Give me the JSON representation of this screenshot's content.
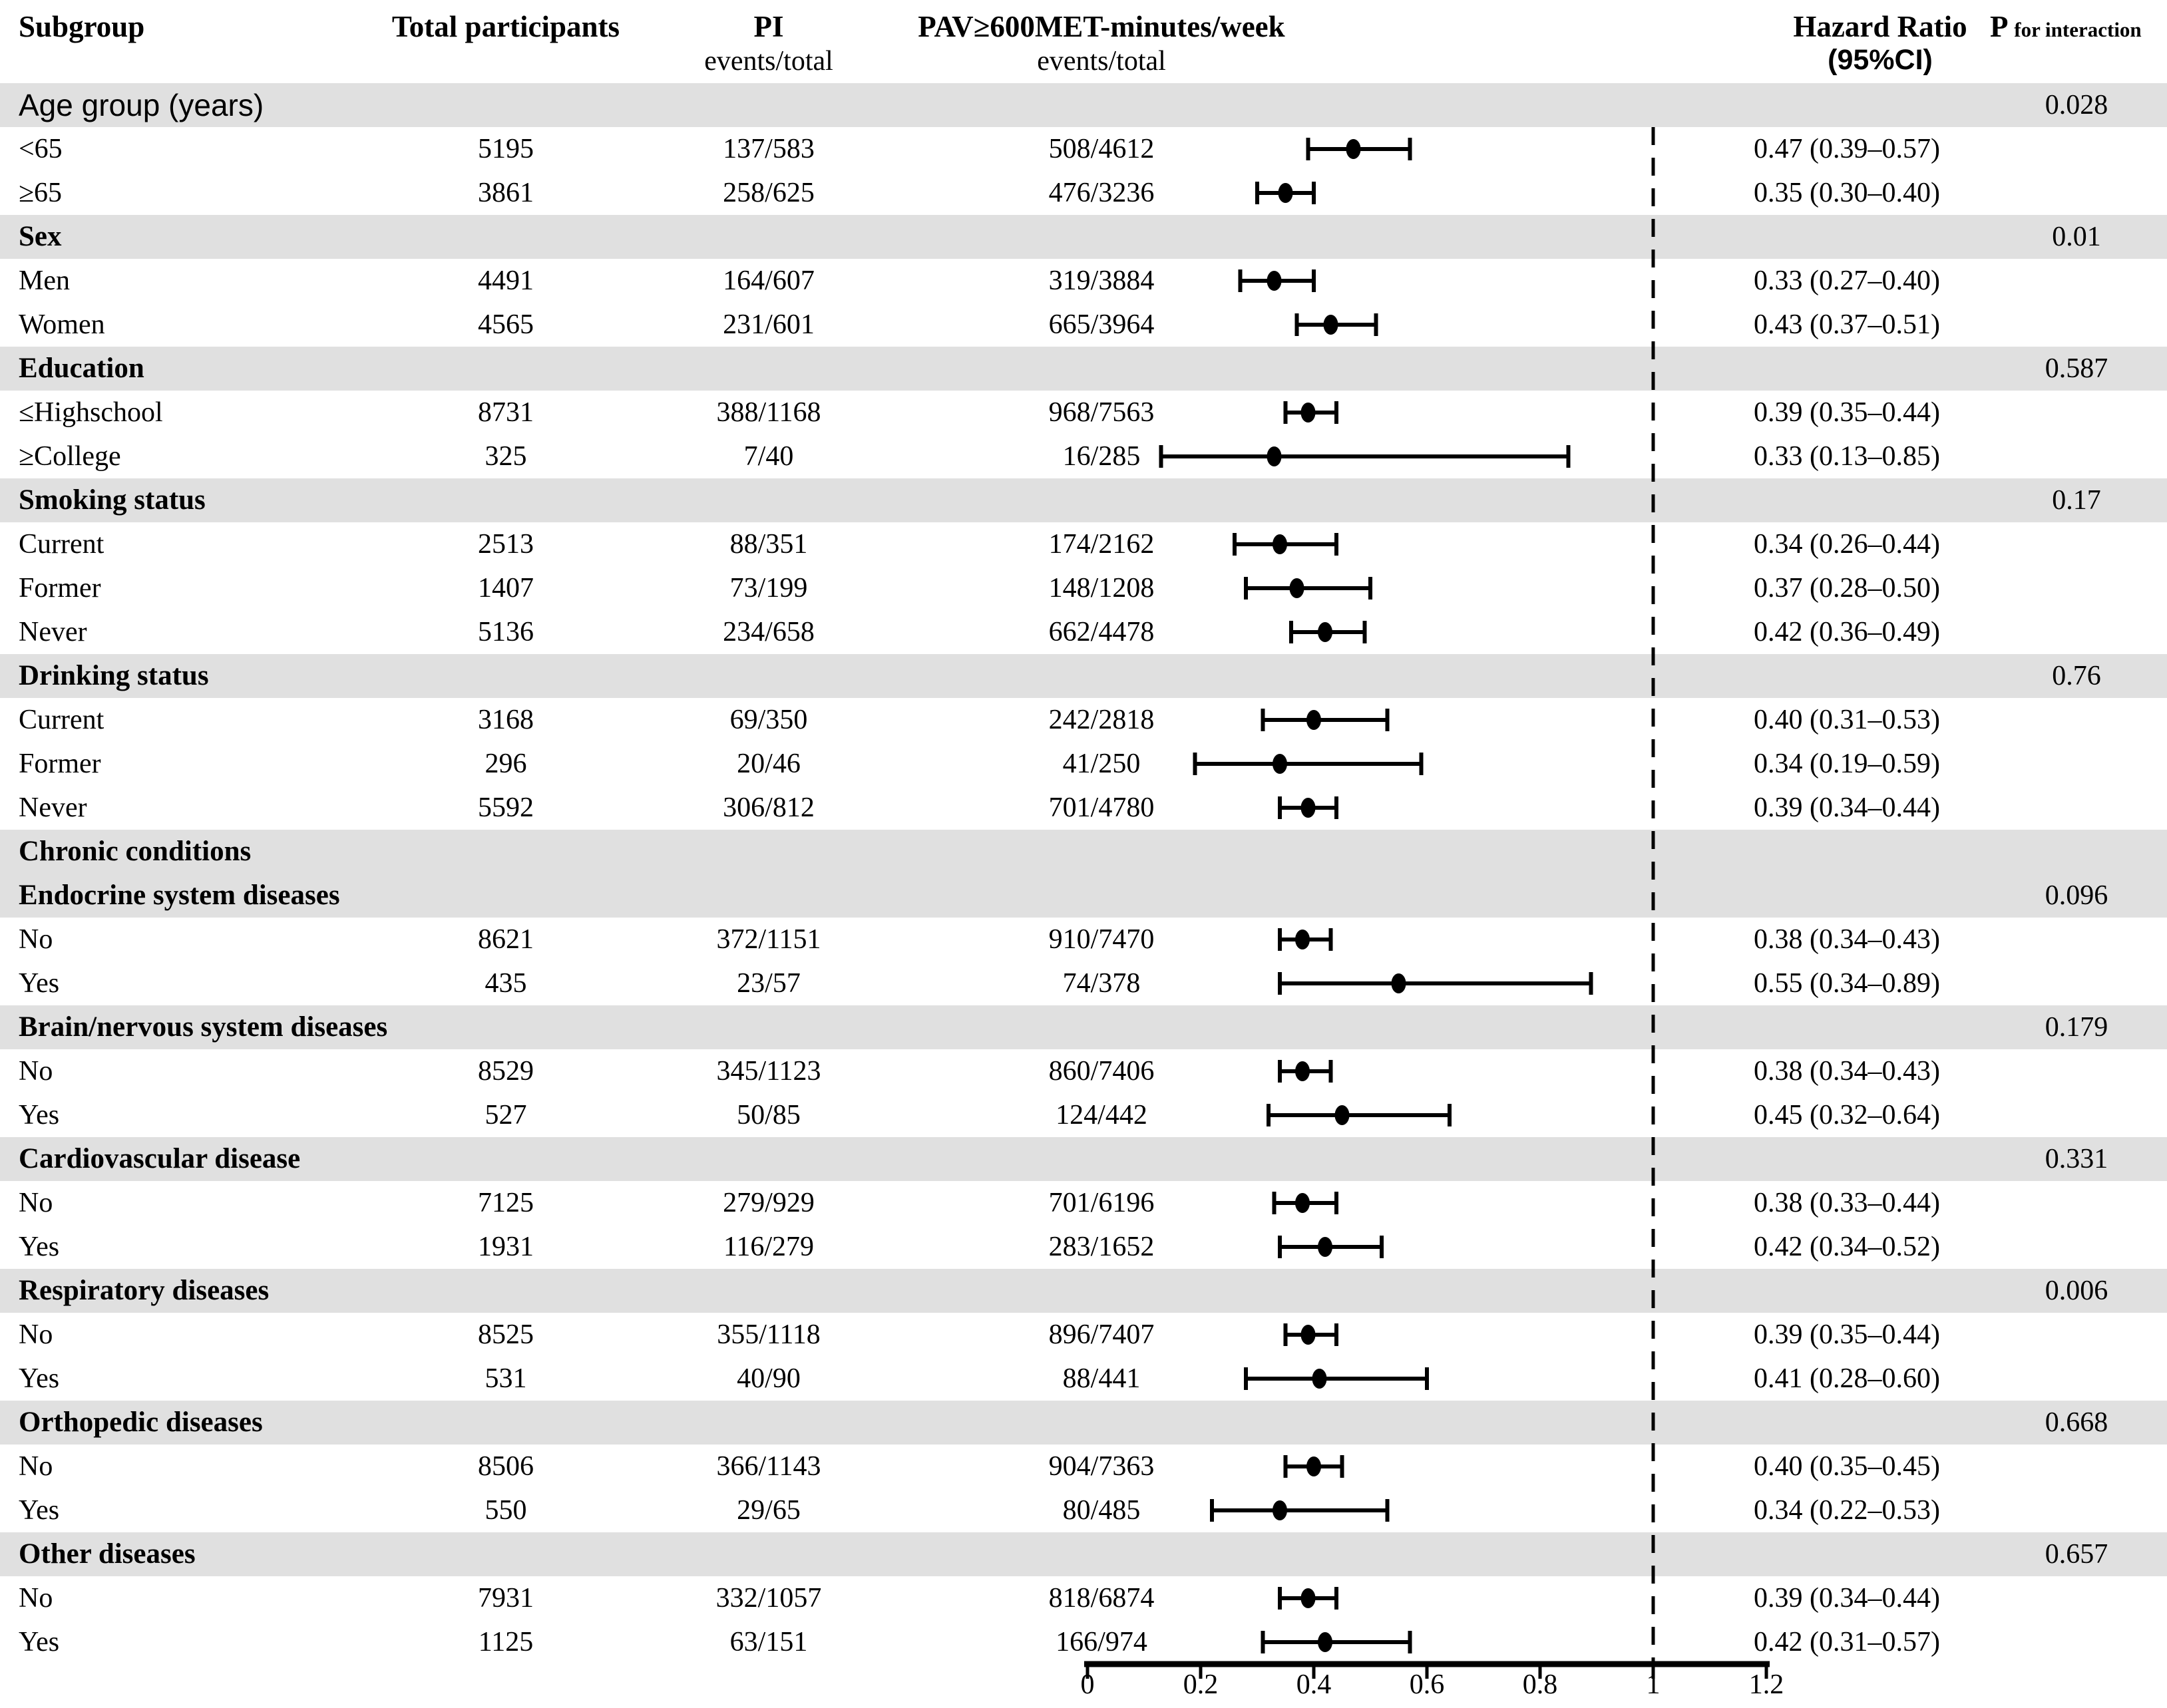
{
  "header": {
    "col_subgroup": "Subgroup",
    "col_total": "Total participants",
    "col_pi_line1": "PI",
    "col_pi_line2": "events/total",
    "col_pav_line1": "PAV≥600MET-minutes/week",
    "col_pav_line2": "events/total",
    "col_hr_line1": "Hazard Ratio",
    "col_hr_line2": "(95%CI)",
    "col_p_main": "P",
    "col_p_sub": "for interaction"
  },
  "colors": {
    "band_bg": "#e0e0e0",
    "text": "#000000",
    "marker": "#000000"
  },
  "chart_data": {
    "type": "forest",
    "x_ticks": [
      "0",
      "0.2",
      "0.4",
      "0.6",
      "0.8",
      "1",
      "1.2"
    ],
    "x_range": [
      0,
      1.2
    ],
    "reference_line": 1,
    "grid": false,
    "rows": [
      {
        "kind": "band",
        "sans": true,
        "label": "Age group (years)",
        "p": "0.028"
      },
      {
        "kind": "item",
        "label": "<65",
        "total": "5195",
        "pi": "137/583",
        "pav": "508/4612",
        "est": 0.47,
        "lo": 0.39,
        "hi": 0.57,
        "hr_text": "0.47 (0.39–0.57)"
      },
      {
        "kind": "item",
        "label": "≥65",
        "total": "3861",
        "pi": "258/625",
        "pav": "476/3236",
        "est": 0.35,
        "lo": 0.3,
        "hi": 0.4,
        "hr_text": "0.35 (0.30–0.40)"
      },
      {
        "kind": "band",
        "label": "Sex",
        "p": "0.01"
      },
      {
        "kind": "item",
        "label": "Men",
        "total": "4491",
        "pi": "164/607",
        "pav": "319/3884",
        "est": 0.33,
        "lo": 0.27,
        "hi": 0.4,
        "hr_text": "0.33 (0.27–0.40)"
      },
      {
        "kind": "item",
        "label": "Women",
        "total": "4565",
        "pi": "231/601",
        "pav": "665/3964",
        "est": 0.43,
        "lo": 0.37,
        "hi": 0.51,
        "hr_text": "0.43 (0.37–0.51)"
      },
      {
        "kind": "band",
        "label": "Education",
        "p": "0.587"
      },
      {
        "kind": "item",
        "label": "≤Highschool",
        "total": "8731",
        "pi": "388/1168",
        "pav": "968/7563",
        "est": 0.39,
        "lo": 0.35,
        "hi": 0.44,
        "hr_text": "0.39 (0.35–0.44)"
      },
      {
        "kind": "item",
        "label": "≥College",
        "total": "325",
        "pi": "7/40",
        "pav": "16/285",
        "est": 0.33,
        "lo": 0.13,
        "hi": 0.85,
        "hr_text": "0.33 (0.13–0.85)"
      },
      {
        "kind": "band",
        "label": "Smoking status",
        "p": "0.17"
      },
      {
        "kind": "item",
        "label": "Current",
        "total": "2513",
        "pi": "88/351",
        "pav": "174/2162",
        "est": 0.34,
        "lo": 0.26,
        "hi": 0.44,
        "hr_text": "0.34 (0.26–0.44)"
      },
      {
        "kind": "item",
        "label": "Former",
        "total": "1407",
        "pi": "73/199",
        "pav": "148/1208",
        "est": 0.37,
        "lo": 0.28,
        "hi": 0.5,
        "hr_text": "0.37 (0.28–0.50)"
      },
      {
        "kind": "item",
        "label": "Never",
        "total": "5136",
        "pi": "234/658",
        "pav": "662/4478",
        "est": 0.42,
        "lo": 0.36,
        "hi": 0.49,
        "hr_text": "0.42 (0.36–0.49)"
      },
      {
        "kind": "band",
        "label": "Drinking status",
        "p": "0.76"
      },
      {
        "kind": "item",
        "label": "Current",
        "total": "3168",
        "pi": "69/350",
        "pav": "242/2818",
        "est": 0.4,
        "lo": 0.31,
        "hi": 0.53,
        "hr_text": "0.40 (0.31–0.53)"
      },
      {
        "kind": "item",
        "label": "Former",
        "total": "296",
        "pi": "20/46",
        "pav": "41/250",
        "est": 0.34,
        "lo": 0.19,
        "hi": 0.59,
        "hr_text": "0.34 (0.19–0.59)"
      },
      {
        "kind": "item",
        "label": "Never",
        "total": "5592",
        "pi": "306/812",
        "pav": "701/4780",
        "est": 0.39,
        "lo": 0.34,
        "hi": 0.44,
        "hr_text": "0.39 (0.34–0.44)"
      },
      {
        "kind": "band2",
        "label": "Chronic conditions",
        "label2": "Endocrine system diseases",
        "p": "0.096"
      },
      {
        "kind": "item",
        "label": "No",
        "total": "8621",
        "pi": "372/1151",
        "pav": "910/7470",
        "est": 0.38,
        "lo": 0.34,
        "hi": 0.43,
        "hr_text": "0.38 (0.34–0.43)"
      },
      {
        "kind": "item",
        "label": "Yes",
        "total": "435",
        "pi": "23/57",
        "pav": "74/378",
        "est": 0.55,
        "lo": 0.34,
        "hi": 0.89,
        "hr_text": "0.55 (0.34–0.89)"
      },
      {
        "kind": "band",
        "label": "Brain/nervous system diseases",
        "p": "0.179"
      },
      {
        "kind": "item",
        "label": "No",
        "total": "8529",
        "pi": "345/1123",
        "pav": "860/7406",
        "est": 0.38,
        "lo": 0.34,
        "hi": 0.43,
        "hr_text": "0.38 (0.34–0.43)"
      },
      {
        "kind": "item",
        "label": "Yes",
        "total": "527",
        "pi": "50/85",
        "pav": "124/442",
        "est": 0.45,
        "lo": 0.32,
        "hi": 0.64,
        "hr_text": "0.45 (0.32–0.64)"
      },
      {
        "kind": "band",
        "label": "Cardiovascular disease",
        "p": "0.331"
      },
      {
        "kind": "item",
        "label": "No",
        "total": "7125",
        "pi": "279/929",
        "pav": "701/6196",
        "est": 0.38,
        "lo": 0.33,
        "hi": 0.44,
        "hr_text": "0.38 (0.33–0.44)"
      },
      {
        "kind": "item",
        "label": "Yes",
        "total": "1931",
        "pi": "116/279",
        "pav": "283/1652",
        "est": 0.42,
        "lo": 0.34,
        "hi": 0.52,
        "hr_text": "0.42 (0.34–0.52)"
      },
      {
        "kind": "band",
        "label": "Respiratory diseases",
        "p": "0.006"
      },
      {
        "kind": "item",
        "label": "No",
        "total": "8525",
        "pi": "355/1118",
        "pav": "896/7407",
        "est": 0.39,
        "lo": 0.35,
        "hi": 0.44,
        "hr_text": "0.39 (0.35–0.44)"
      },
      {
        "kind": "item",
        "label": "Yes",
        "total": "531",
        "pi": "40/90",
        "pav": "88/441",
        "est": 0.41,
        "lo": 0.28,
        "hi": 0.6,
        "hr_text": "0.41 (0.28–0.60)"
      },
      {
        "kind": "band",
        "label": "Orthopedic diseases",
        "p": "0.668"
      },
      {
        "kind": "item",
        "label": "No",
        "total": "8506",
        "pi": "366/1143",
        "pav": "904/7363",
        "est": 0.4,
        "lo": 0.35,
        "hi": 0.45,
        "hr_text": "0.40 (0.35–0.45)"
      },
      {
        "kind": "item",
        "label": "Yes",
        "total": "550",
        "pi": "29/65",
        "pav": "80/485",
        "est": 0.34,
        "lo": 0.22,
        "hi": 0.53,
        "hr_text": "0.34 (0.22–0.53)"
      },
      {
        "kind": "band",
        "label": "Other diseases",
        "p": "0.657"
      },
      {
        "kind": "item",
        "label": "No",
        "total": "7931",
        "pi": "332/1057",
        "pav": "818/6874",
        "est": 0.39,
        "lo": 0.34,
        "hi": 0.44,
        "hr_text": "0.39 (0.34–0.44)"
      },
      {
        "kind": "item",
        "label": "Yes",
        "total": "1125",
        "pi": "63/151",
        "pav": "166/974",
        "est": 0.42,
        "lo": 0.31,
        "hi": 0.57,
        "hr_text": "0.42 (0.31–0.57)"
      }
    ]
  }
}
